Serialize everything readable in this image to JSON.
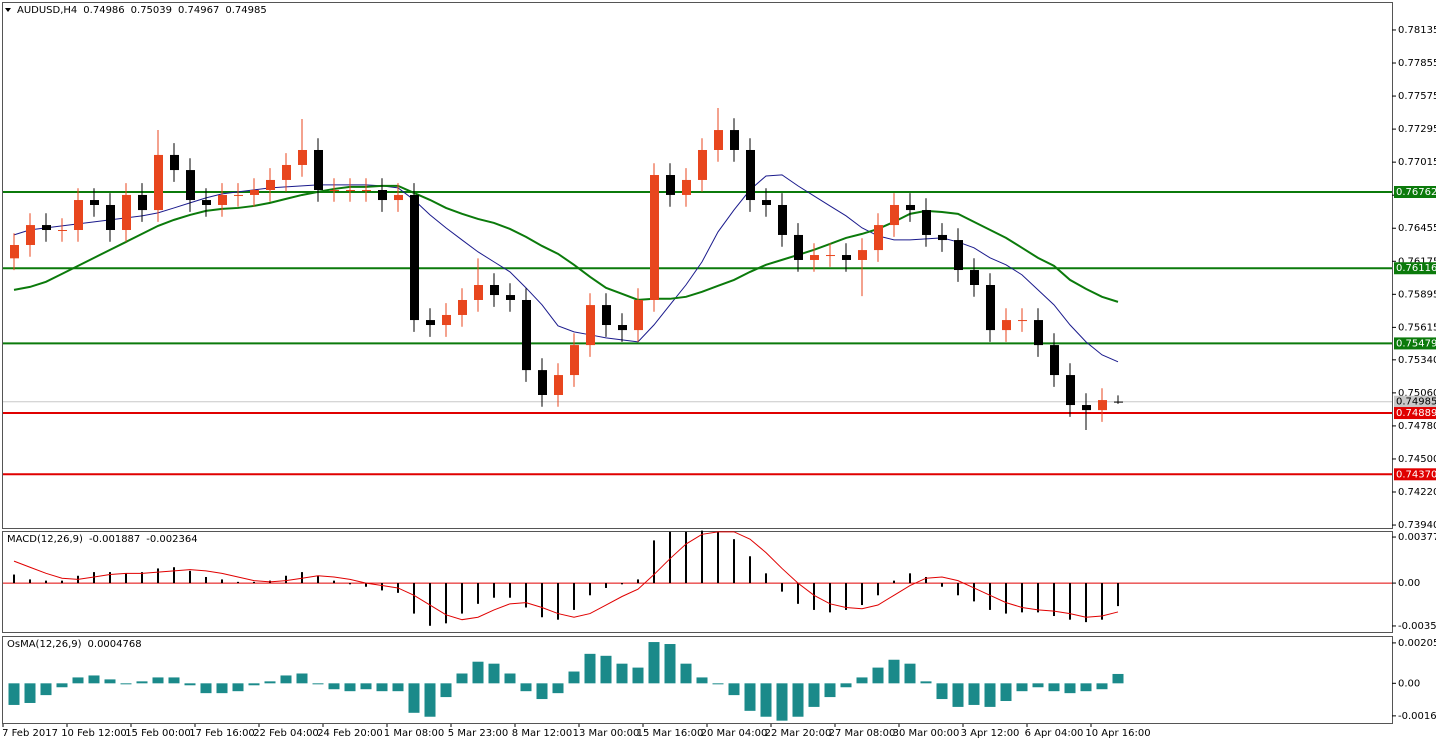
{
  "chart_data": [
    {
      "type": "candlestick",
      "title": "AUDUSD,H4",
      "categories": [
        null,
        "7 Feb 2017",
        null,
        null,
        null,
        "10 Feb 12:00",
        null,
        null,
        null,
        "15 Feb 00:00",
        null,
        null,
        null,
        "17 Feb 16:00",
        null,
        null,
        null,
        "22 Feb 04:00",
        null,
        null,
        null,
        "24 Feb 20:00",
        null,
        null,
        null,
        "1 Mar 08:00",
        null,
        null,
        null,
        "5 Mar 23:00",
        null,
        null,
        null,
        "8 Mar 12:00",
        null,
        null,
        null,
        "13 Mar 00:00",
        null,
        null,
        null,
        "15 Mar 16:00",
        null,
        null,
        null,
        "20 Mar 04:00",
        null,
        null,
        null,
        "22 Mar 20:00",
        null,
        null,
        null,
        "27 Mar 08:00",
        null,
        null,
        null,
        "30 Mar 00:00",
        null,
        null,
        null,
        "3 Apr 12:00",
        null,
        null,
        null,
        "6 Apr 04:00",
        null,
        null,
        null,
        "10 Apr 16:00"
      ],
      "open": [
        0.762,
        0.76313,
        0.76482,
        0.7644,
        0.7644,
        0.76694,
        0.76652,
        0.7644,
        0.76737,
        0.76609,
        0.77076,
        0.76948,
        0.76694,
        0.76652,
        0.76737,
        0.76737,
        0.76779,
        0.76864,
        0.76991,
        0.77118,
        0.76779,
        0.76779,
        0.76779,
        0.76779,
        0.76694,
        0.76737,
        0.75677,
        0.75635,
        0.7572,
        0.75847,
        0.75974,
        0.75889,
        0.75847,
        0.75253,
        0.75042,
        0.75211,
        0.75465,
        0.75804,
        0.75635,
        0.75592,
        0.75847,
        0.76906,
        0.76737,
        0.76864,
        0.77118,
        0.77287,
        0.77118,
        0.76694,
        0.76652,
        0.76398,
        0.76186,
        0.76228,
        0.76228,
        0.76186,
        0.7627,
        0.76482,
        0.76652,
        0.76609,
        0.76398,
        0.76355,
        0.76101,
        0.75974,
        0.75592,
        0.75677,
        0.75677,
        0.75465,
        0.75211,
        0.74957,
        0.74914,
        0.74986
      ],
      "high": [
        0.76413,
        0.76582,
        0.76582,
        0.7654,
        0.76794,
        0.76794,
        0.76752,
        0.76837,
        0.76837,
        0.77287,
        0.77176,
        0.77048,
        0.76794,
        0.76837,
        0.76837,
        0.76879,
        0.76964,
        0.77091,
        0.77381,
        0.77218,
        0.76879,
        0.76879,
        0.76879,
        0.76879,
        0.76837,
        0.76837,
        0.75777,
        0.7582,
        0.75947,
        0.762,
        0.76074,
        0.75989,
        0.75947,
        0.75353,
        0.75311,
        0.75565,
        0.75904,
        0.75904,
        0.75735,
        0.75947,
        0.77006,
        0.77006,
        0.76964,
        0.77218,
        0.77474,
        0.77387,
        0.77218,
        0.76794,
        0.76752,
        0.76498,
        0.76328,
        0.76328,
        0.76328,
        0.7637,
        0.76582,
        0.76752,
        0.76752,
        0.76709,
        0.76498,
        0.76455,
        0.76201,
        0.76074,
        0.75777,
        0.75777,
        0.75777,
        0.75565,
        0.75311,
        0.75057,
        0.75099,
        0.75039
      ],
      "low": [
        0.761,
        0.76213,
        0.7634,
        0.7634,
        0.7634,
        0.76552,
        0.7634,
        0.7634,
        0.76509,
        0.76509,
        0.76848,
        0.76594,
        0.76552,
        0.76552,
        0.76637,
        0.76637,
        0.76679,
        0.76764,
        0.76891,
        0.76679,
        0.76679,
        0.76679,
        0.76679,
        0.76594,
        0.76594,
        0.75577,
        0.75535,
        0.75535,
        0.7562,
        0.75747,
        0.75789,
        0.75747,
        0.75153,
        0.74942,
        0.74942,
        0.75111,
        0.75365,
        0.75535,
        0.75492,
        0.75492,
        0.75747,
        0.76637,
        0.76637,
        0.76764,
        0.77018,
        0.77018,
        0.76594,
        0.76552,
        0.76298,
        0.76086,
        0.76086,
        0.76128,
        0.76086,
        0.7588,
        0.7617,
        0.76382,
        0.76509,
        0.76298,
        0.76255,
        0.76001,
        0.75874,
        0.75492,
        0.75492,
        0.75577,
        0.75365,
        0.75111,
        0.74857,
        0.74745,
        0.74814,
        0.74967
      ],
      "close": [
        0.76313,
        0.76482,
        0.7644,
        0.7644,
        0.76694,
        0.76652,
        0.7644,
        0.76737,
        0.76609,
        0.77076,
        0.76948,
        0.76694,
        0.76652,
        0.76737,
        0.76737,
        0.76779,
        0.76864,
        0.76991,
        0.77118,
        0.76779,
        0.76779,
        0.76779,
        0.76779,
        0.76694,
        0.76737,
        0.75677,
        0.75635,
        0.7572,
        0.75847,
        0.75974,
        0.75889,
        0.75847,
        0.75253,
        0.75042,
        0.75211,
        0.75465,
        0.75804,
        0.75635,
        0.75592,
        0.75847,
        0.76906,
        0.76737,
        0.76864,
        0.77118,
        0.77287,
        0.77118,
        0.76694,
        0.76652,
        0.76398,
        0.76186,
        0.76228,
        0.76228,
        0.76186,
        0.7627,
        0.76482,
        0.76652,
        0.76609,
        0.76398,
        0.76355,
        0.76101,
        0.75974,
        0.75592,
        0.75677,
        0.75677,
        0.75465,
        0.75211,
        0.74957,
        0.74914,
        0.74999,
        0.74985
      ],
      "up_color": "#e8461e",
      "down_color": "#000000",
      "series": [
        {
          "color": "#1a1a8c",
          "width": 1,
          "values": [
            0.76399,
            0.76441,
            0.76458,
            0.76475,
            0.76492,
            0.76509,
            0.76526,
            0.76543,
            0.7656,
            0.76585,
            0.76627,
            0.7667,
            0.76712,
            0.76746,
            0.76763,
            0.7678,
            0.76797,
            0.76805,
            0.76814,
            0.76822,
            0.76822,
            0.76822,
            0.76822,
            0.76814,
            0.76797,
            0.76695,
            0.76568,
            0.76458,
            0.76356,
            0.76255,
            0.7617,
            0.76085,
            0.7595,
            0.75806,
            0.75628,
            0.75577,
            0.75552,
            0.75526,
            0.75509,
            0.75492,
            0.75636,
            0.75806,
            0.75975,
            0.7617,
            0.76424,
            0.7661,
            0.7678,
            0.76898,
            0.76907,
            0.76814,
            0.76729,
            0.76644,
            0.7656,
            0.76458,
            0.7639,
            0.76356,
            0.76356,
            0.76365,
            0.76373,
            0.76339,
            0.76289,
            0.76204,
            0.76145,
            0.7606,
            0.75933,
            0.75806,
            0.75636,
            0.75492,
            0.75382,
            0.75323
          ]
        },
        {
          "color": "#0b7a0b",
          "width": 2,
          "values": [
            0.75933,
            0.75958,
            0.76001,
            0.76068,
            0.76136,
            0.76204,
            0.76272,
            0.76339,
            0.76407,
            0.76475,
            0.76526,
            0.76568,
            0.76602,
            0.76619,
            0.76627,
            0.76644,
            0.7667,
            0.76704,
            0.76737,
            0.76763,
            0.76788,
            0.76805,
            0.76805,
            0.76814,
            0.76814,
            0.76754,
            0.76695,
            0.76627,
            0.76577,
            0.76534,
            0.765,
            0.76449,
            0.76382,
            0.76305,
            0.76238,
            0.76145,
            0.76043,
            0.7595,
            0.75899,
            0.75848,
            0.75857,
            0.75857,
            0.75874,
            0.75916,
            0.75967,
            0.76017,
            0.76085,
            0.76145,
            0.76187,
            0.76229,
            0.76272,
            0.76322,
            0.76373,
            0.76407,
            0.76449,
            0.76509,
            0.76577,
            0.76602,
            0.76593,
            0.76577,
            0.76509,
            0.76441,
            0.76373,
            0.76289,
            0.76204,
            0.76136,
            0.76017,
            0.75941,
            0.75874,
            0.75831
          ]
        }
      ],
      "levels": [
        {
          "value": 0.76762,
          "color": "#0b7a0b"
        },
        {
          "value": 0.76116,
          "color": "#0b7a0b"
        },
        {
          "value": 0.75479,
          "color": "#0b7a0b"
        },
        {
          "value": 0.74889,
          "color": "#e00000"
        },
        {
          "value": 0.7437,
          "label": "0.74370",
          "color": "#e00000"
        }
      ],
      "ylim": [
        0.73915,
        0.78372
      ],
      "yticks": [
        0.78135,
        0.77855,
        0.77575,
        0.77295,
        0.77015,
        0.76735,
        0.76455,
        0.76175,
        0.75895,
        0.75615,
        {
          "value": 0.7534,
          "label": "0.75340"
        },
        {
          "value": 0.7506,
          "label": "0.75060"
        },
        {
          "value": 0.7478,
          "label": "0.74780"
        },
        {
          "value": 0.745,
          "label": "0.74500"
        },
        {
          "value": 0.7422,
          "label": "0.74220"
        },
        {
          "value": 0.7394,
          "label": "0.73940"
        }
      ]
    },
    {
      "type": "bar",
      "title": "MACD(12,26,9)",
      "series": [
        {
          "type": "bar",
          "color": "#000000",
          "values": [
            0.0007,
            0.0003,
            0.0002,
            0.0002,
            0.0006,
            0.0009,
            0.0009,
            0.0008,
            0.0009,
            0.0012,
            0.0013,
            0.001,
            0.0005,
            0.0003,
            0.0001,
            0.0001,
            0.0002,
            0.0006,
            0.0009,
            0.0006,
            0.0002,
            -0.0001,
            -0.0003,
            -0.0006,
            -0.0008,
            -0.0025,
            -0.0035,
            -0.0033,
            -0.0025,
            -0.0017,
            -0.0012,
            -0.0012,
            -0.002,
            -0.0028,
            -0.003,
            -0.0022,
            -0.001,
            -0.0004,
            -0.0001,
            0.0003,
            0.0035,
            0.0042,
            0.0042,
            0.0043,
            0.0042,
            0.0036,
            0.0022,
            0.0008,
            -0.0007,
            -0.0017,
            -0.0022,
            -0.0024,
            -0.0022,
            -0.0018,
            -0.001,
            0.0002,
            0.0008,
            0.0005,
            -0.0003,
            -0.001,
            -0.0015,
            -0.0022,
            -0.0025,
            -0.0024,
            -0.0024,
            -0.0027,
            -0.003,
            -0.0032,
            -0.003,
            -0.001887
          ]
        },
        {
          "type": "line",
          "color": "#e00000",
          "values": [
            0.0018,
            0.0013,
            0.0008,
            0.0004,
            0.0003,
            0.0005,
            0.0007,
            0.0008,
            0.0008,
            0.0009,
            0.001,
            0.0011,
            0.001,
            0.0008,
            0.0005,
            0.0002,
            0.0001,
            0.0002,
            0.0004,
            0.0006,
            0.0005,
            0.0003,
            0,
            -0.0002,
            -0.0004,
            -0.001,
            -0.0018,
            -0.0026,
            -0.003,
            -0.0028,
            -0.0022,
            -0.0017,
            -0.0016,
            -0.002,
            -0.0025,
            -0.0028,
            -0.0025,
            -0.0018,
            -0.0011,
            -0.0005,
            0.0007,
            0.002,
            0.0032,
            0.004,
            0.0042,
            0.0042,
            0.0036,
            0.0025,
            0.0012,
            0,
            -0.001,
            -0.0017,
            -0.002,
            -0.0021,
            -0.0018,
            -0.001,
            -0.0002,
            0.0004,
            0.0005,
            0.0002,
            -0.0004,
            -0.001,
            -0.0016,
            -0.002,
            -0.0022,
            -0.0023,
            -0.0025,
            -0.0028,
            -0.0027,
            -0.002364
          ]
        }
      ],
      "baseline_color": "#e00000",
      "ylim": [
        -0.00401,
        0.00427
      ],
      "yticks": [
        0.003775,
        {
          "value": 0,
          "label": "0.00"
        },
        -0.003515
      ]
    },
    {
      "type": "bar",
      "title": "OsMA(12,26,9)",
      "series": [
        {
          "type": "bar",
          "color": "#1b8a8a",
          "values": [
            -0.0011,
            -0.001,
            -0.0006,
            -0.0002,
            0.0003,
            0.0004,
            0.0002,
            0,
            0.0001,
            0.0003,
            0.0003,
            -0.0001,
            -0.0005,
            -0.0005,
            -0.0004,
            -0.0001,
            0.0001,
            0.0004,
            0.0005,
            0,
            -0.0003,
            -0.0004,
            -0.0003,
            -0.0004,
            -0.0004,
            -0.0015,
            -0.0017,
            -0.0007,
            0.0005,
            0.0011,
            0.001,
            0.0005,
            -0.0004,
            -0.0008,
            -0.0005,
            0.0006,
            0.0015,
            0.0014,
            0.001,
            0.0008,
            0.0021,
            0.002,
            0.001,
            0.0003,
            0,
            -0.0006,
            -0.0014,
            -0.0017,
            -0.0019,
            -0.0017,
            -0.0012,
            -0.0007,
            -0.0002,
            0.0003,
            0.0008,
            0.0012,
            0.001,
            0.0001,
            -0.0008,
            -0.0012,
            -0.0011,
            -0.0012,
            -0.0009,
            -0.0004,
            -0.0002,
            -0.0004,
            -0.0005,
            -0.0004,
            -0.0003,
            0.0004768
          ]
        }
      ],
      "ylim": [
        -0.002019,
        0.002408
      ],
      "yticks": [
        0.002057,
        {
          "value": 0,
          "label": "0.00"
        },
        -0.001656
      ]
    }
  ]
}
